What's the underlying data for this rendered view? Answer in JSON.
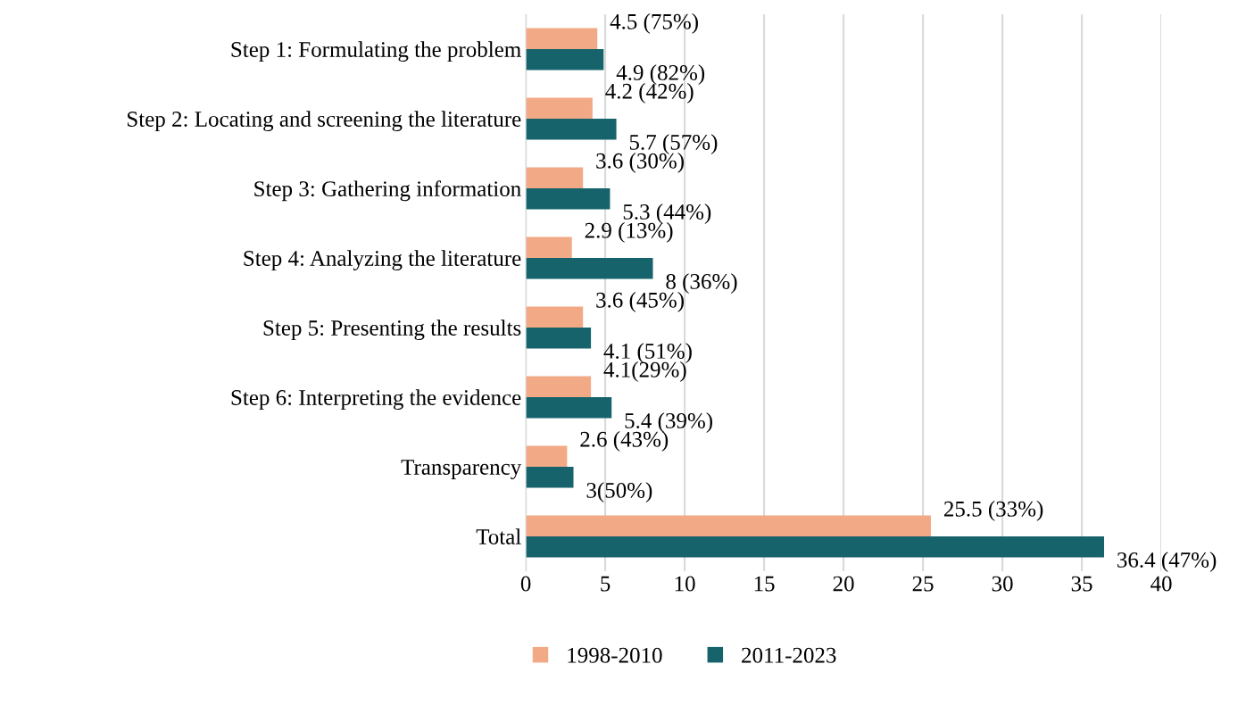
{
  "chart_data": {
    "type": "bar",
    "orientation": "horizontal",
    "categories": [
      "Step 1: Formulating the problem",
      "Step 2: Locating and screening the literature",
      "Step 3: Gathering information",
      "Step 4: Analyzing the literature",
      "Step 5: Presenting the results",
      "Step 6: Interpreting the evidence",
      "Transparency",
      "Total"
    ],
    "series": [
      {
        "name": "1998-2010",
        "color": "#f2a985",
        "values": [
          4.5,
          4.2,
          3.6,
          2.9,
          3.6,
          4.1,
          2.6,
          25.5
        ],
        "value_labels": [
          "4.5 (75%)",
          "4.2 (42%)",
          "3.6 (30%)",
          "2.9 (13%)",
          "3.6 (45%)",
          "4.1(29%)",
          "2.6 (43%)",
          "25.5 (33%)"
        ]
      },
      {
        "name": "2011-2023",
        "color": "#16636b",
        "values": [
          4.9,
          5.7,
          5.3,
          8,
          4.1,
          5.4,
          3,
          36.4
        ],
        "value_labels": [
          "4.9 (82%)",
          "5.7 (57%)",
          "5.3 (44%)",
          "8 (36%)",
          "4.1 (51%)",
          "5.4 (39%)",
          "3(50%)",
          "36.4 (47%)"
        ]
      }
    ],
    "xlim": [
      0,
      40
    ],
    "xticks": [
      0,
      5,
      10,
      15,
      20,
      25,
      30,
      35,
      40
    ],
    "grid": "x",
    "legend": "bottom"
  }
}
